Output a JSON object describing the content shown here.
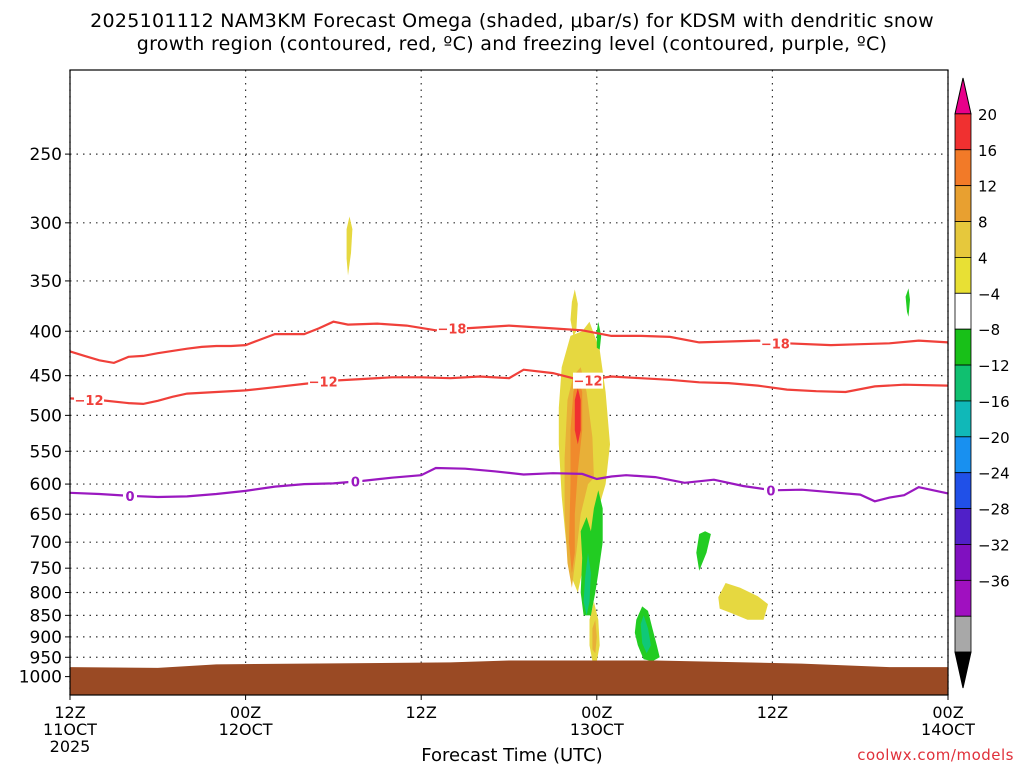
{
  "title": {
    "line1": "2025101112 NAM3KM Forecast Omega (shaded, μbar/s) for KDSM with dendritic snow",
    "line2": "growth region (contoured, red, ºC) and freezing level (contoured, purple, ºC)"
  },
  "credit": "coolwx.com/models",
  "chart_data": {
    "type": "heatmap",
    "title": "2025101112 NAM3KM Forecast Omega (shaded, μbar/s) for KDSM with dendritic snow growth region (contoured, red, ºC) and freezing level (contoured, purple, ºC)",
    "xlabel": "Forecast Time (UTC)",
    "ylabel": "",
    "x_range_hours": [
      0,
      60
    ],
    "x_ticks": [
      {
        "hour": 0,
        "label1": "12Z",
        "label2": "11OCT",
        "label3": "2025"
      },
      {
        "hour": 12,
        "label1": "00Z",
        "label2": "12OCT",
        "label3": ""
      },
      {
        "hour": 24,
        "label1": "12Z",
        "label2": "",
        "label3": ""
      },
      {
        "hour": 36,
        "label1": "00Z",
        "label2": "13OCT",
        "label3": ""
      },
      {
        "hour": 48,
        "label1": "12Z",
        "label2": "",
        "label3": ""
      },
      {
        "hour": 60,
        "label1": "00Z",
        "label2": "14OCT",
        "label3": ""
      }
    ],
    "y_axis": "pressure (hPa), log scale, inverted",
    "y_range": [
      1050,
      200
    ],
    "y_ticks": [
      250,
      300,
      350,
      400,
      450,
      500,
      550,
      600,
      650,
      700,
      750,
      800,
      850,
      900,
      950,
      1000
    ],
    "grid": "dotted",
    "colorbar": {
      "labels": [
        "20",
        "16",
        "12",
        "8",
        "4",
        "-4",
        "-8",
        "-12",
        "-16",
        "-20",
        "-24",
        "-28",
        "-32",
        "-36"
      ],
      "colors": [
        "#e8008a",
        "#f03030",
        "#f27a28",
        "#e8a030",
        "#e6c83c",
        "#e8e034",
        "#ffffff",
        "#18c018",
        "#10c070",
        "#10b8b8",
        "#1890f0",
        "#2050e8",
        "#5020c8",
        "#8010c0",
        "#a010c0",
        "#a8a8a8",
        "#000000"
      ]
    },
    "contours": [
      {
        "name": "dendritic -18ºC",
        "color": "#f0403a",
        "label": "-18",
        "points": [
          [
            0,
            422
          ],
          [
            1,
            427
          ],
          [
            2,
            432
          ],
          [
            3,
            435
          ],
          [
            4,
            428
          ],
          [
            5,
            427
          ],
          [
            6,
            424
          ],
          [
            8,
            419
          ],
          [
            9,
            417
          ],
          [
            10,
            416
          ],
          [
            11,
            416
          ],
          [
            12,
            415
          ],
          [
            13,
            409
          ],
          [
            14,
            403
          ],
          [
            16,
            403
          ],
          [
            17,
            397
          ],
          [
            18,
            390
          ],
          [
            19,
            393
          ],
          [
            21,
            392
          ],
          [
            23,
            394
          ],
          [
            25,
            399
          ],
          [
            27,
            397
          ],
          [
            30,
            394
          ],
          [
            33,
            397
          ],
          [
            35,
            399
          ],
          [
            37,
            405
          ],
          [
            39,
            405
          ],
          [
            41,
            406
          ],
          [
            43,
            412
          ],
          [
            45,
            411
          ],
          [
            47,
            410
          ],
          [
            49,
            413
          ],
          [
            52,
            415
          ],
          [
            54,
            414
          ],
          [
            56,
            413
          ],
          [
            58,
            410
          ],
          [
            60,
            412
          ]
        ]
      },
      {
        "name": "dendritic -12ºC",
        "color": "#f0403a",
        "label": "-12",
        "points": [
          [
            0,
            478
          ],
          [
            2,
            480
          ],
          [
            4,
            484
          ],
          [
            5,
            485
          ],
          [
            6,
            481
          ],
          [
            7,
            476
          ],
          [
            8,
            472
          ],
          [
            10,
            470
          ],
          [
            12,
            468
          ],
          [
            14,
            464
          ],
          [
            16,
            460
          ],
          [
            18,
            456
          ],
          [
            20,
            454
          ],
          [
            22,
            452
          ],
          [
            24,
            452
          ],
          [
            26,
            453
          ],
          [
            28,
            451
          ],
          [
            30,
            453
          ],
          [
            31,
            443
          ],
          [
            33,
            447
          ],
          [
            35,
            456
          ],
          [
            37,
            451
          ],
          [
            39,
            453
          ],
          [
            41,
            455
          ],
          [
            43,
            458
          ],
          [
            45,
            459
          ],
          [
            47,
            462
          ],
          [
            49,
            467
          ],
          [
            51,
            469
          ],
          [
            53,
            470
          ],
          [
            55,
            463
          ],
          [
            57,
            461
          ],
          [
            60,
            462
          ]
        ]
      },
      {
        "name": "freezing level 0ºC",
        "color": "#9a18c0",
        "label": "0",
        "points": [
          [
            0,
            614
          ],
          [
            2,
            616
          ],
          [
            4,
            619
          ],
          [
            6,
            621
          ],
          [
            8,
            620
          ],
          [
            10,
            616
          ],
          [
            12,
            611
          ],
          [
            14,
            604
          ],
          [
            16,
            600
          ],
          [
            18,
            599
          ],
          [
            20,
            595
          ],
          [
            22,
            590
          ],
          [
            24,
            586
          ],
          [
            25,
            575
          ],
          [
            27,
            576
          ],
          [
            29,
            580
          ],
          [
            31,
            585
          ],
          [
            33,
            583
          ],
          [
            35,
            584
          ],
          [
            36,
            592
          ],
          [
            37,
            588
          ],
          [
            38,
            586
          ],
          [
            40,
            589
          ],
          [
            42,
            598
          ],
          [
            44,
            593
          ],
          [
            46,
            603
          ],
          [
            48,
            610
          ],
          [
            50,
            609
          ],
          [
            52,
            613
          ],
          [
            54,
            617
          ],
          [
            55,
            628
          ],
          [
            56,
            622
          ],
          [
            57,
            618
          ],
          [
            58,
            605
          ],
          [
            59,
            610
          ],
          [
            60,
            615
          ]
        ]
      }
    ],
    "contour_labels": [
      {
        "text": "-18",
        "x": 26.1,
        "y": 397
      },
      {
        "text": "-18",
        "x": 48.2,
        "y": 413
      },
      {
        "text": "-12",
        "x": 1.3,
        "y": 480
      },
      {
        "text": "-12",
        "x": 17.3,
        "y": 457
      },
      {
        "text": "-12",
        "x": 35.4,
        "y": 456
      },
      {
        "text": "0",
        "x": 4.1,
        "y": 619
      },
      {
        "text": "0",
        "x": 19.5,
        "y": 596
      },
      {
        "text": "0",
        "x": 47.9,
        "y": 610
      }
    ],
    "omega_regions": [
      {
        "value": 4,
        "polygon": [
          [
            18.9,
            305
          ],
          [
            19.1,
            295
          ],
          [
            19.3,
            305
          ],
          [
            19.2,
            325
          ],
          [
            19.0,
            345
          ],
          [
            18.9,
            330
          ]
        ]
      },
      {
        "value": 4,
        "polygon": [
          [
            34.3,
            370
          ],
          [
            34.5,
            358
          ],
          [
            34.7,
            372
          ],
          [
            34.6,
            400
          ],
          [
            34.4,
            405
          ],
          [
            34.2,
            388
          ]
        ]
      },
      {
        "value": 4,
        "polygon": [
          [
            33.6,
            440
          ],
          [
            34.2,
            405
          ],
          [
            35.0,
            400
          ],
          [
            35.5,
            390
          ],
          [
            36.2,
            420
          ],
          [
            36.6,
            470
          ],
          [
            36.9,
            540
          ],
          [
            36.6,
            600
          ],
          [
            36.0,
            650
          ],
          [
            35.2,
            730
          ],
          [
            34.7,
            800
          ],
          [
            34.3,
            770
          ],
          [
            33.9,
            700
          ],
          [
            33.6,
            620
          ],
          [
            33.4,
            540
          ],
          [
            33.4,
            490
          ]
        ]
      },
      {
        "value": 8,
        "polygon": [
          [
            34.0,
            480
          ],
          [
            34.4,
            450
          ],
          [
            34.9,
            440
          ],
          [
            35.3,
            470
          ],
          [
            35.7,
            530
          ],
          [
            35.8,
            590
          ],
          [
            35.4,
            600
          ],
          [
            34.9,
            650
          ],
          [
            34.6,
            720
          ],
          [
            34.3,
            790
          ],
          [
            34.0,
            740
          ],
          [
            33.8,
            650
          ],
          [
            33.8,
            560
          ]
        ]
      },
      {
        "value": 12,
        "polygon": [
          [
            34.4,
            470
          ],
          [
            34.7,
            452
          ],
          [
            35.0,
            470
          ],
          [
            35.0,
            520
          ],
          [
            34.7,
            580
          ],
          [
            34.5,
            650
          ],
          [
            34.5,
            720
          ],
          [
            34.3,
            760
          ],
          [
            34.1,
            700
          ],
          [
            34.2,
            600
          ],
          [
            34.2,
            520
          ]
        ]
      },
      {
        "value": 16,
        "polygon": [
          [
            34.5,
            480
          ],
          [
            34.7,
            465
          ],
          [
            34.9,
            480
          ],
          [
            34.9,
            520
          ],
          [
            34.7,
            540
          ],
          [
            34.5,
            520
          ]
        ]
      },
      {
        "value": 4,
        "polygon": [
          [
            35.5,
            860
          ],
          [
            35.8,
            820
          ],
          [
            36.1,
            860
          ],
          [
            36.2,
            920
          ],
          [
            36.0,
            960
          ],
          [
            35.7,
            960
          ],
          [
            35.5,
            920
          ]
        ]
      },
      {
        "value": 8,
        "polygon": [
          [
            35.7,
            880
          ],
          [
            35.9,
            860
          ],
          [
            36.0,
            900
          ],
          [
            35.9,
            940
          ],
          [
            35.7,
            930
          ]
        ]
      },
      {
        "value": 4,
        "polygon": [
          [
            44.3,
            810
          ],
          [
            44.8,
            780
          ],
          [
            45.8,
            790
          ],
          [
            47.0,
            808
          ],
          [
            47.7,
            825
          ],
          [
            47.4,
            860
          ],
          [
            46.3,
            860
          ],
          [
            45.2,
            845
          ],
          [
            44.4,
            835
          ]
        ]
      },
      {
        "value": -4,
        "polygon": [
          [
            34.9,
            680
          ],
          [
            35.3,
            655
          ],
          [
            35.6,
            680
          ],
          [
            35.8,
            640
          ],
          [
            36.1,
            610
          ],
          [
            36.4,
            640
          ],
          [
            36.4,
            700
          ],
          [
            36.1,
            760
          ],
          [
            35.9,
            800
          ],
          [
            35.6,
            850
          ],
          [
            35.1,
            850
          ],
          [
            34.9,
            800
          ],
          [
            35.0,
            730
          ]
        ]
      },
      {
        "value": -8,
        "polygon": [
          [
            35.2,
            770
          ],
          [
            35.4,
            720
          ],
          [
            35.6,
            760
          ],
          [
            35.5,
            820
          ],
          [
            35.3,
            850
          ],
          [
            35.1,
            820
          ]
        ]
      },
      {
        "value": -4,
        "polygon": [
          [
            36.0,
            400
          ],
          [
            36.1,
            390
          ],
          [
            36.3,
            405
          ],
          [
            36.2,
            420
          ],
          [
            36.0,
            418
          ]
        ]
      },
      {
        "value": -4,
        "polygon": [
          [
            38.7,
            860
          ],
          [
            39.1,
            830
          ],
          [
            39.5,
            840
          ],
          [
            39.8,
            880
          ],
          [
            40.1,
            920
          ],
          [
            40.3,
            950
          ],
          [
            39.8,
            960
          ],
          [
            39.2,
            955
          ],
          [
            38.8,
            920
          ],
          [
            38.6,
            890
          ]
        ]
      },
      {
        "value": -8,
        "polygon": [
          [
            39.0,
            870
          ],
          [
            39.2,
            850
          ],
          [
            39.5,
            880
          ],
          [
            39.7,
            920
          ],
          [
            39.4,
            940
          ],
          [
            39.1,
            915
          ]
        ]
      },
      {
        "value": -4,
        "polygon": [
          [
            43.0,
            685
          ],
          [
            43.4,
            680
          ],
          [
            43.8,
            685
          ],
          [
            43.5,
            720
          ],
          [
            43.0,
            755
          ],
          [
            42.8,
            720
          ]
        ]
      },
      {
        "value": -4,
        "polygon": [
          [
            57.1,
            365
          ],
          [
            57.3,
            357
          ],
          [
            57.4,
            368
          ],
          [
            57.3,
            385
          ],
          [
            57.2,
            380
          ]
        ]
      }
    ],
    "terrain": "brown surface layer near 1000 hPa"
  }
}
